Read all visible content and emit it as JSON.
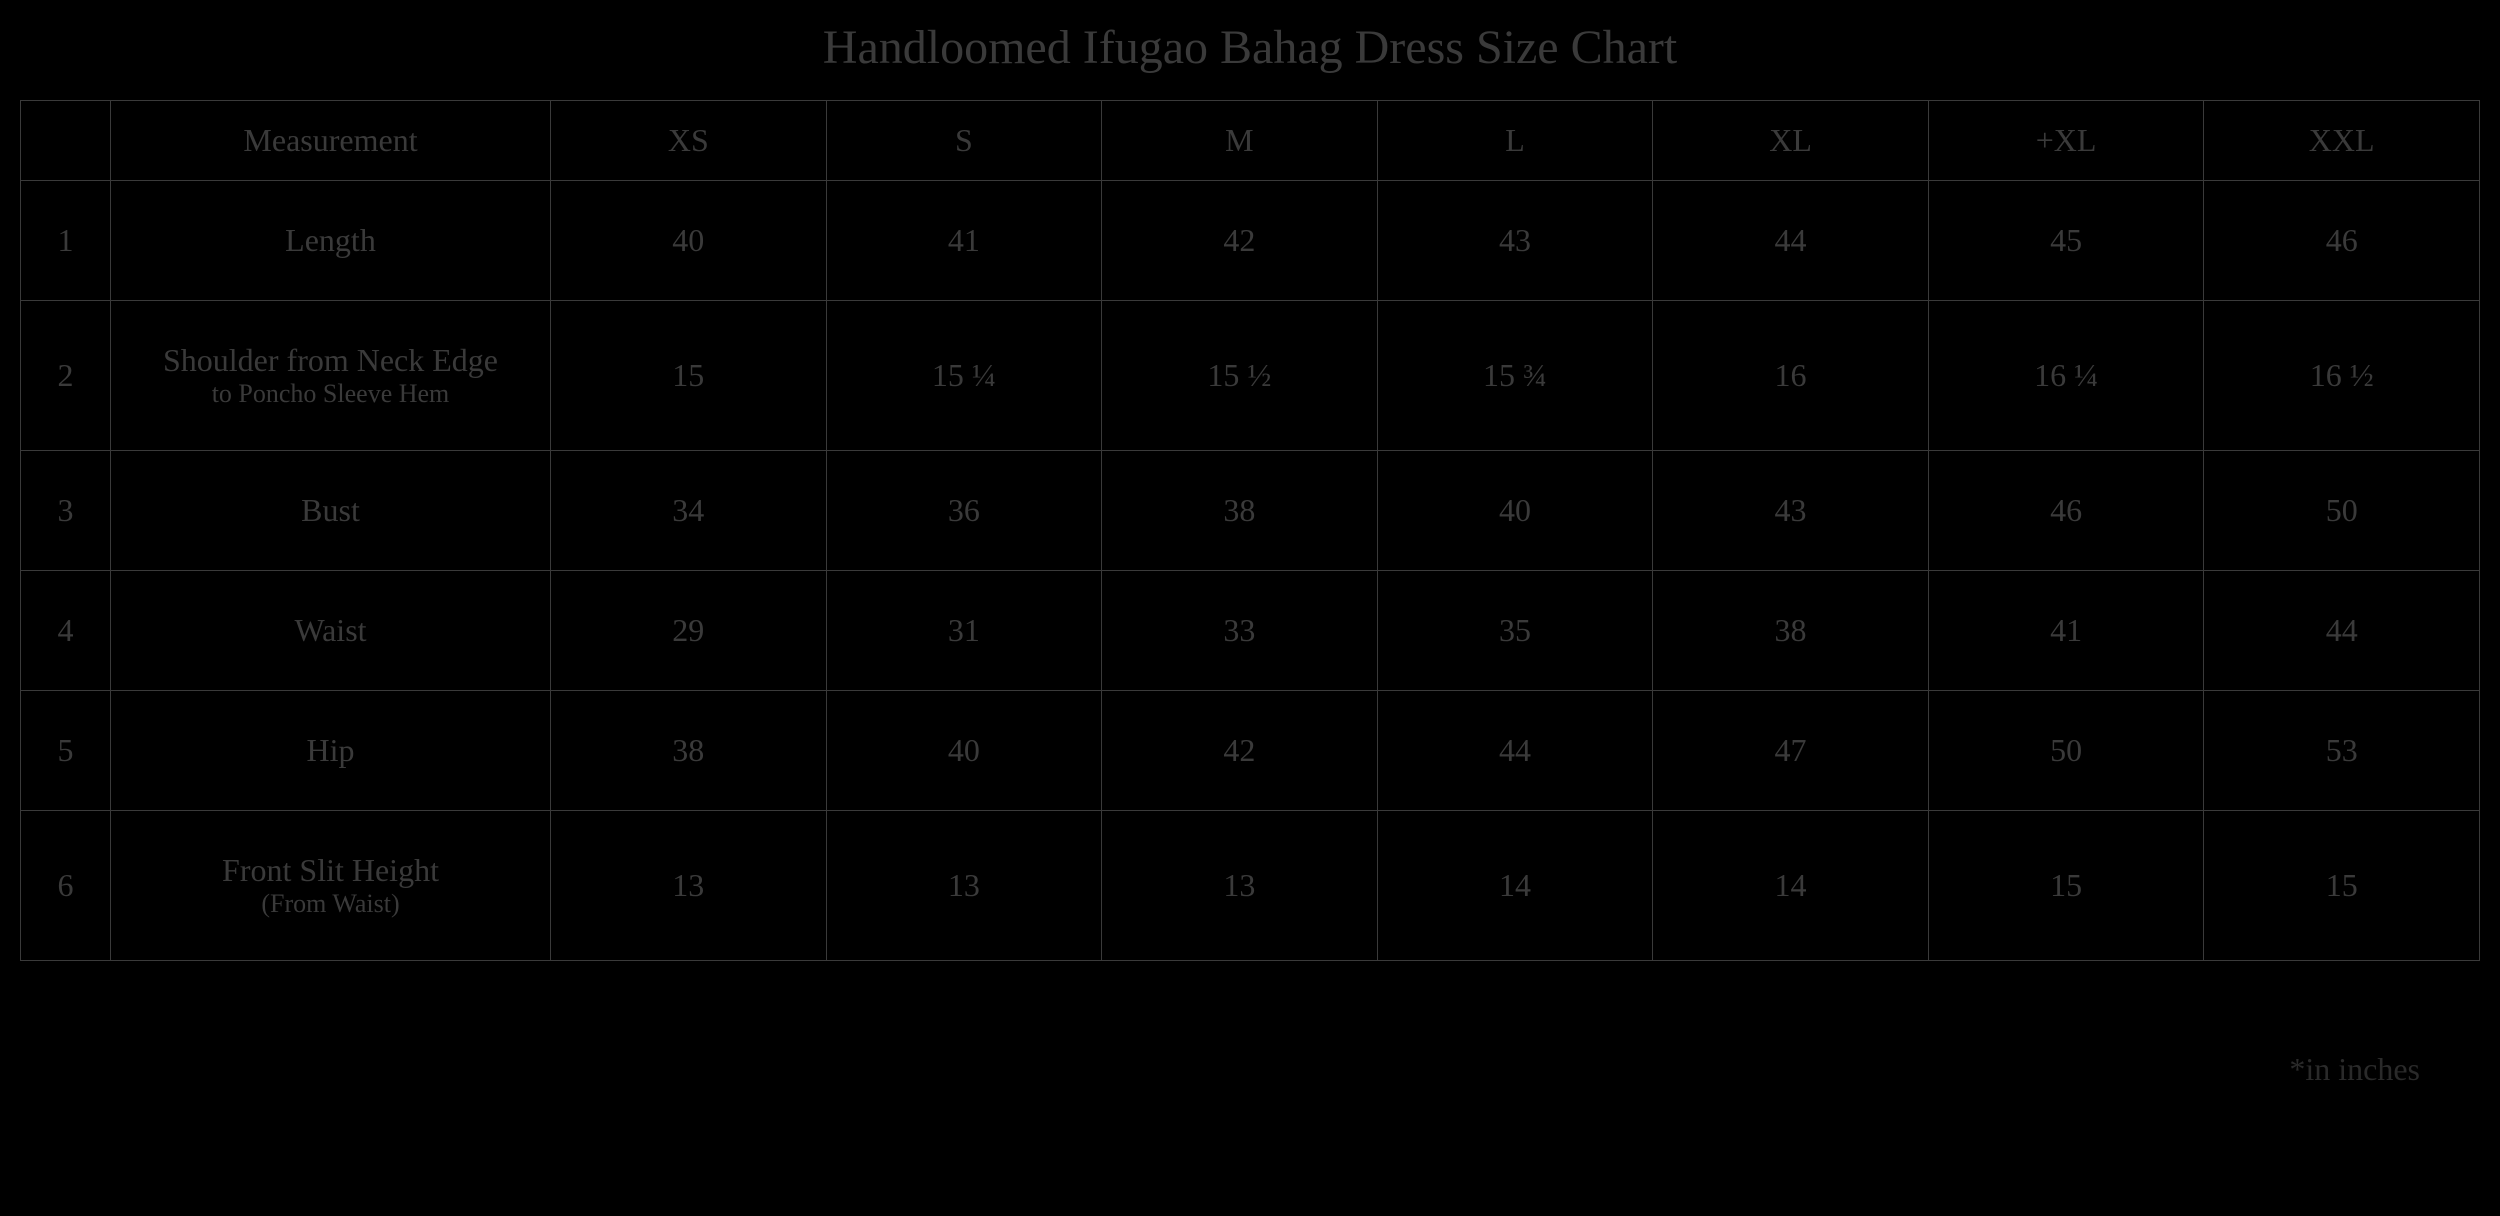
{
  "title": "Handloomed Ifugao Bahag Dress Size Chart",
  "footnote": "*in inches",
  "colors": {
    "background": "#000000",
    "text": "#3a3a3a",
    "border": "#3a3a3a"
  },
  "typography": {
    "title_fontsize": 48,
    "cell_fontsize": 32,
    "subtext_fontsize": 26,
    "font_family": "Georgia, serif"
  },
  "table": {
    "headers": {
      "blank": "",
      "measurement": "Measurement",
      "sizes": [
        "XS",
        "S",
        "M",
        "L",
        "XL",
        "+XL",
        "XXL"
      ]
    },
    "rows": [
      {
        "num": "1",
        "measurement": "Length",
        "sub": "",
        "values": [
          "40",
          "41",
          "42",
          "43",
          "44",
          "45",
          "46"
        ]
      },
      {
        "num": "2",
        "measurement": "Shoulder from Neck Edge",
        "sub": "to Poncho Sleeve Hem",
        "values": [
          "15",
          "15 ¼",
          "15 ½",
          "15 ¾",
          "16",
          "16 ¼",
          "16 ½"
        ]
      },
      {
        "num": "3",
        "measurement": "Bust",
        "sub": "",
        "values": [
          "34",
          "36",
          "38",
          "40",
          "43",
          "46",
          "50"
        ]
      },
      {
        "num": "4",
        "measurement": "Waist",
        "sub": "",
        "values": [
          "29",
          "31",
          "33",
          "35",
          "38",
          "41",
          "44"
        ]
      },
      {
        "num": "5",
        "measurement": "Hip",
        "sub": "",
        "values": [
          "38",
          "40",
          "42",
          "44",
          "47",
          "50",
          "53"
        ]
      },
      {
        "num": "6",
        "measurement": "Front Slit Height",
        "sub": "(From Waist)",
        "values": [
          "13",
          "13",
          "13",
          "14",
          "14",
          "15",
          "15"
        ]
      }
    ]
  }
}
